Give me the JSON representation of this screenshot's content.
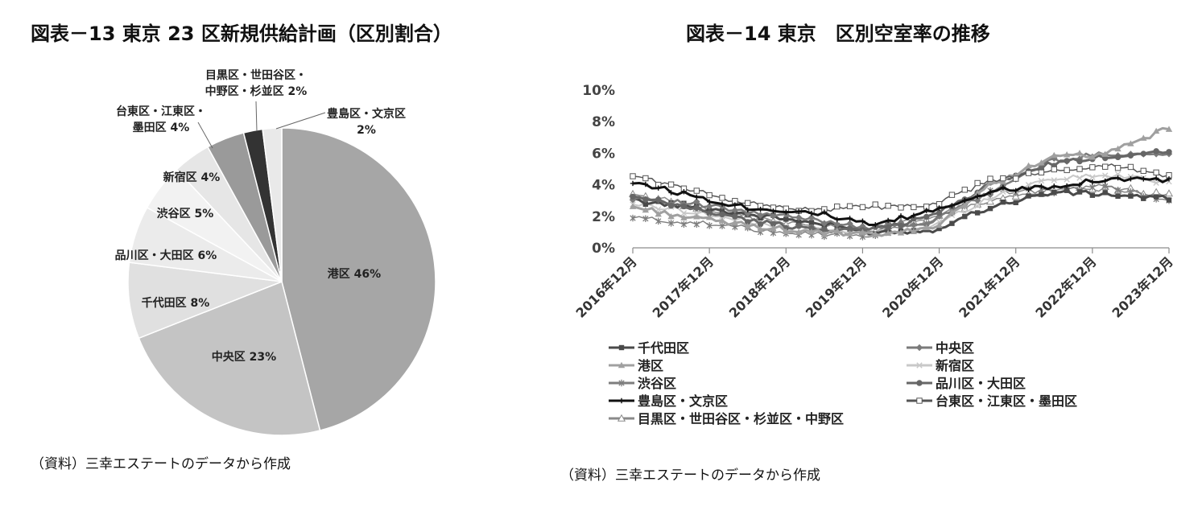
{
  "left": {
    "title": "図表－13 東京 23 区新規供給計画（区別割合）",
    "source": "（資料）三幸エステートのデータから作成"
  },
  "right": {
    "title": "図表－14 東京　区別空室率の推移",
    "source": "（資料）三幸エステートのデータから作成"
  },
  "chart_data": [
    {
      "type": "pie",
      "title": "図表－13 東京 23 区新規供給計画（区別割合）",
      "unit": "%",
      "slices": [
        {
          "label": "港区",
          "value": 46,
          "color": "#a6a6a6"
        },
        {
          "label": "中央区",
          "value": 23,
          "color": "#c4c4c4"
        },
        {
          "label": "千代田区",
          "value": 8,
          "color": "#e0e0e0"
        },
        {
          "label": "品川区・大田区",
          "value": 6,
          "color": "#ebebeb"
        },
        {
          "label": "渋谷区",
          "value": 5,
          "color": "#f2f2f2"
        },
        {
          "label": "新宿区",
          "value": 4,
          "color": "#e6e6e6"
        },
        {
          "label": "台東区・江東区・墨田区",
          "value": 4,
          "color": "#9a9a9a"
        },
        {
          "label": "目黒区・世田谷区・中野区・杉並区",
          "value": 2,
          "color": "#333333"
        },
        {
          "label": "豊島区・文京区",
          "value": 2,
          "color": "#e9e9e9"
        }
      ],
      "display_labels": [
        {
          "lines": [
            "港区 46%"
          ]
        },
        {
          "lines": [
            "中央区 23%"
          ]
        },
        {
          "lines": [
            "千代田区 8%"
          ]
        },
        {
          "lines": [
            "品川区・大田区 6%"
          ]
        },
        {
          "lines": [
            "渋谷区 5%"
          ]
        },
        {
          "lines": [
            "新宿区 4%"
          ]
        },
        {
          "lines": [
            "台東区・江東区・",
            "墨田区 4%"
          ]
        },
        {
          "lines": [
            "目黒区・世田谷区・",
            "中野区・杉並区 2%"
          ]
        },
        {
          "lines": [
            "豊島区・文京区",
            "2%"
          ]
        }
      ]
    },
    {
      "type": "line",
      "title": "図表－14 東京　区別空室率の推移",
      "y_unit": "%",
      "ylim": [
        0,
        10
      ],
      "yticks": [
        "0%",
        "2%",
        "4%",
        "6%",
        "8%",
        "10%"
      ],
      "x_start": "2016年12月",
      "x_end": "2023年12月",
      "xticks": [
        "2016年12月",
        "2017年12月",
        "2018年12月",
        "2019年12月",
        "2020年12月",
        "2021年12月",
        "2022年12月",
        "2023年12月"
      ],
      "legend_position": "bottom",
      "series": [
        {
          "name": "千代田区",
          "color": "#4a4a4a",
          "marker": "square",
          "values": [
            3.0,
            2.6,
            2.1,
            1.6,
            1.0,
            1.1,
            2.6,
            3.5,
            3.4,
            3.1
          ]
        },
        {
          "name": "中央区",
          "color": "#7a7a7a",
          "marker": "diamond",
          "values": [
            3.2,
            2.8,
            2.2,
            1.8,
            1.3,
            1.6,
            3.5,
            5.5,
            6.0,
            5.9
          ]
        },
        {
          "name": "港区",
          "color": "#a0a0a0",
          "marker": "triangle",
          "values": [
            2.6,
            1.9,
            1.4,
            1.0,
            0.8,
            1.2,
            4.0,
            5.7,
            6.0,
            7.6
          ]
        },
        {
          "name": "新宿区",
          "color": "#c8c8c8",
          "marker": "x",
          "values": [
            2.8,
            2.3,
            1.6,
            1.2,
            0.9,
            1.3,
            3.2,
            4.4,
            4.6,
            4.2
          ]
        },
        {
          "name": "渋谷区",
          "color": "#7e7e7e",
          "marker": "star",
          "values": [
            1.9,
            1.6,
            1.2,
            0.9,
            0.8,
            1.7,
            3.6,
            3.6,
            3.9,
            3.0
          ]
        },
        {
          "name": "品川区・大田区",
          "color": "#666666",
          "marker": "circle",
          "values": [
            3.2,
            2.5,
            1.7,
            1.2,
            1.1,
            2.0,
            4.0,
            5.3,
            5.8,
            6.2
          ]
        },
        {
          "name": "豊島区・文京区",
          "color": "#111111",
          "marker": "plus",
          "values": [
            4.2,
            3.3,
            2.5,
            2.3,
            1.4,
            2.3,
            3.6,
            3.9,
            4.4,
            4.3
          ]
        },
        {
          "name": "台東区・江東区・墨田区",
          "color": "#555555",
          "marker": "hollow-square",
          "values": [
            4.6,
            3.6,
            2.8,
            2.4,
            2.6,
            2.6,
            4.3,
            4.8,
            5.3,
            4.5
          ]
        },
        {
          "name": "目黒区・世田谷区・杉並区・中野区",
          "color": "#8a8a8a",
          "marker": "hollow-triangle",
          "values": [
            3.4,
            2.7,
            1.9,
            1.4,
            1.1,
            2.0,
            3.0,
            3.6,
            3.8,
            3.3
          ]
        }
      ]
    }
  ]
}
